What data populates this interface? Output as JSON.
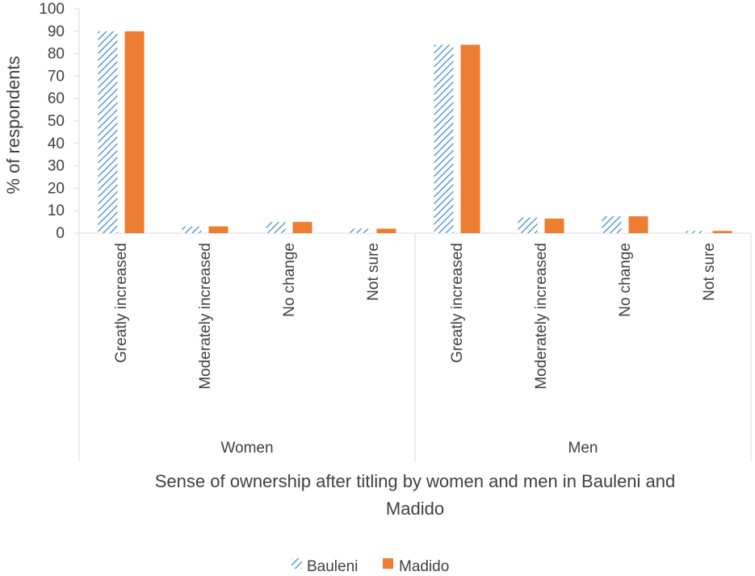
{
  "chart_data": {
    "type": "bar",
    "ylabel": "% of respondents",
    "xlabel_lines": [
      "Sense of ownership after titling by women and men in Bauleni and",
      "Madido"
    ],
    "ylim": [
      0,
      100
    ],
    "yticks": [
      0,
      10,
      20,
      30,
      40,
      50,
      60,
      70,
      80,
      90,
      100
    ],
    "grid": false,
    "legend_position": "bottom",
    "groups": [
      {
        "label": "Women",
        "categories": [
          "Greatly increased",
          "Moderately increased",
          "No change",
          "Not sure"
        ]
      },
      {
        "label": "Men",
        "categories": [
          "Greatly increased",
          "Moderately increased",
          "No change",
          "Not sure"
        ]
      }
    ],
    "series": [
      {
        "name": "Bauleni",
        "pattern": "diagonal-hatch",
        "color": "#5b9bd5",
        "values": [
          90,
          3,
          5,
          2,
          84,
          7,
          7.5,
          1
        ]
      },
      {
        "name": "Madido",
        "pattern": "solid",
        "color": "#ed7d31",
        "values": [
          90,
          3,
          5,
          2,
          84,
          6.5,
          7.5,
          1
        ]
      }
    ]
  }
}
